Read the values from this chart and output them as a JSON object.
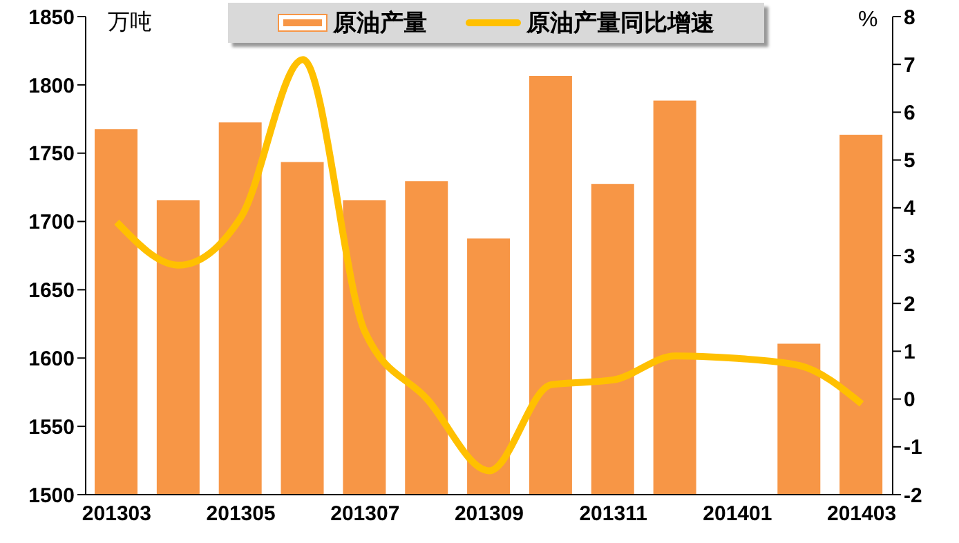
{
  "chart_data": {
    "type": "bar",
    "categories": [
      "201303",
      null,
      "201305",
      null,
      "201307",
      null,
      "201309",
      null,
      "201311",
      null,
      "201401",
      null,
      "201403"
    ],
    "series": [
      {
        "name": "原油产量",
        "color": "#f79646",
        "values": [
          1767,
          1715,
          1772,
          1743,
          1715,
          1729,
          1687,
          1806,
          1727,
          1788,
          null,
          1610,
          1763
        ]
      },
      {
        "name": "原油产量同比增速",
        "type": "line",
        "axis": "y2",
        "color": "#ffc000",
        "values": [
          3.7,
          2.8,
          3.8,
          7.1,
          1.4,
          0.0,
          -1.5,
          0.3,
          0.4,
          0.9,
          0.85,
          0.7,
          -0.1
        ]
      }
    ],
    "ylabel": "万吨",
    "y2label": "%",
    "ylim": [
      1500,
      1850
    ],
    "yticks": [
      1500,
      1550,
      1600,
      1650,
      1700,
      1750,
      1800,
      1850
    ],
    "y2lim": [
      -2,
      8
    ],
    "y2ticks": [
      -2,
      -1,
      0,
      1,
      2,
      3,
      4,
      5,
      6,
      7,
      8
    ],
    "legend": "top",
    "marker": "none",
    "line_style": "solid"
  }
}
